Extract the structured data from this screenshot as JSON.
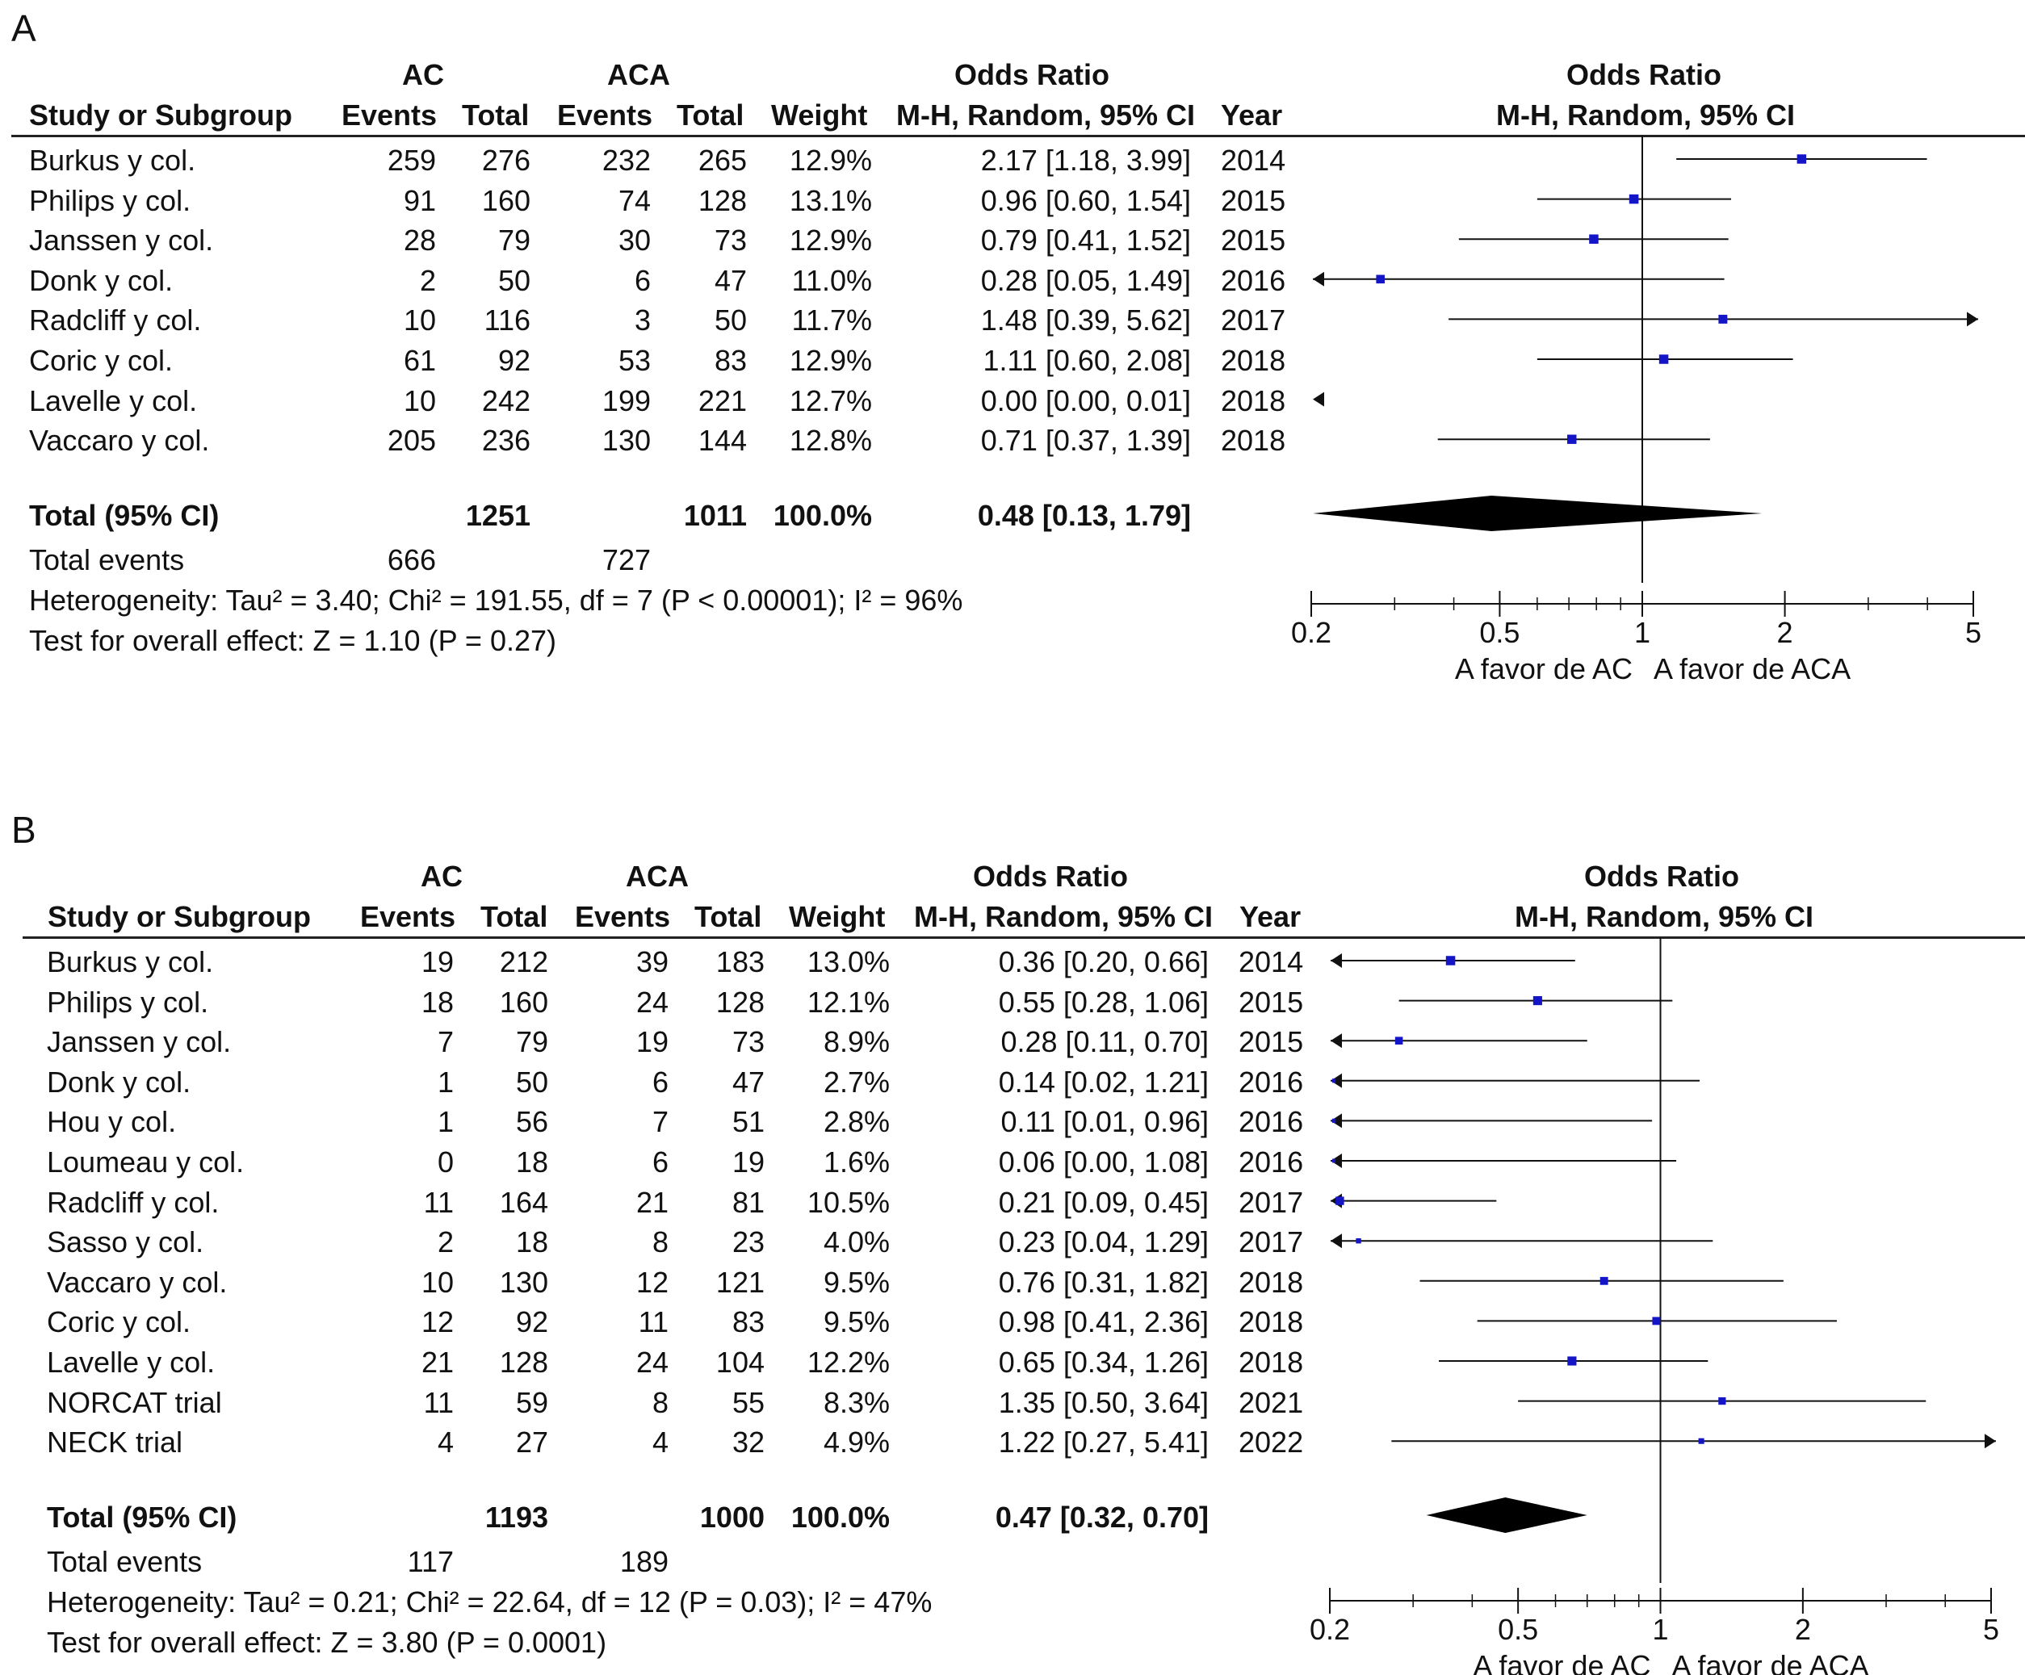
{
  "columns": {
    "group1": "AC",
    "group2": "ACA",
    "or_title": "Odds Ratio",
    "study": "Study or Subgroup",
    "events": "Events",
    "total": "Total",
    "weight": "Weight",
    "method": "M-H, Random, 95% CI",
    "year": "Year"
  },
  "chart_data": [
    {
      "type": "forest",
      "panel": "A",
      "xaxis": {
        "scale": "log",
        "ticks": [
          "0.2",
          "0.5",
          "1",
          "2",
          "5"
        ],
        "xlim": [
          0.2,
          5
        ],
        "favours_left": "A favor de AC",
        "favours_right": "A favor de ACA"
      },
      "title": "Odds Ratio",
      "subtitle": "M-H, Random, 95% CI",
      "studies": [
        {
          "name": "Burkus y col.",
          "e1": "259",
          "n1": "276",
          "e2": "232",
          "n2": "265",
          "weight": "12.9%",
          "or": 2.17,
          "lo": 1.18,
          "hi": 3.99,
          "ci_text": "2.17 [1.18, 3.99]",
          "year": "2014"
        },
        {
          "name": "Philips y col.",
          "e1": "91",
          "n1": "160",
          "e2": "74",
          "n2": "128",
          "weight": "13.1%",
          "or": 0.96,
          "lo": 0.6,
          "hi": 1.54,
          "ci_text": "0.96 [0.60, 1.54]",
          "year": "2015"
        },
        {
          "name": "Janssen y col.",
          "e1": "28",
          "n1": "79",
          "e2": "30",
          "n2": "73",
          "weight": "12.9%",
          "or": 0.79,
          "lo": 0.41,
          "hi": 1.52,
          "ci_text": "0.79 [0.41, 1.52]",
          "year": "2015"
        },
        {
          "name": "Donk y col.",
          "e1": "2",
          "n1": "50",
          "e2": "6",
          "n2": "47",
          "weight": "11.0%",
          "or": 0.28,
          "lo": 0.05,
          "hi": 1.49,
          "ci_text": "0.28 [0.05, 1.49]",
          "year": "2016"
        },
        {
          "name": "Radcliff y col.",
          "e1": "10",
          "n1": "116",
          "e2": "3",
          "n2": "50",
          "weight": "11.7%",
          "or": 1.48,
          "lo": 0.39,
          "hi": 5.62,
          "ci_text": "1.48 [0.39, 5.62]",
          "year": "2017"
        },
        {
          "name": "Coric y col.",
          "e1": "61",
          "n1": "92",
          "e2": "53",
          "n2": "83",
          "weight": "12.9%",
          "or": 1.11,
          "lo": 0.6,
          "hi": 2.08,
          "ci_text": "1.11 [0.60, 2.08]",
          "year": "2018"
        },
        {
          "name": "Lavelle y col.",
          "e1": "10",
          "n1": "242",
          "e2": "199",
          "n2": "221",
          "weight": "12.7%",
          "or": 0.0,
          "lo": 0.0,
          "hi": 0.01,
          "ci_text": "0.00 [0.00, 0.01]",
          "year": "2018"
        },
        {
          "name": "Vaccaro y col.",
          "e1": "205",
          "n1": "236",
          "e2": "130",
          "n2": "144",
          "weight": "12.8%",
          "or": 0.71,
          "lo": 0.37,
          "hi": 1.39,
          "ci_text": "0.71 [0.37, 1.39]",
          "year": "2018"
        }
      ],
      "total": {
        "label": "Total (95% CI)",
        "n1": "1251",
        "n2": "1011",
        "weight": "100.0%",
        "or": 0.48,
        "lo": 0.13,
        "hi": 1.79,
        "ci_text": "0.48 [0.13, 1.79]"
      },
      "total_events": {
        "label": "Total events",
        "e1": "666",
        "e2": "727"
      },
      "heterogeneity": "Heterogeneity: Tau² = 3.40; Chi² = 191.55, df = 7 (P < 0.00001); I² = 96%",
      "overall_effect": "Test for overall effect: Z = 1.10 (P = 0.27)"
    },
    {
      "type": "forest",
      "panel": "B",
      "xaxis": {
        "scale": "log",
        "ticks": [
          "0.2",
          "0.5",
          "1",
          "2",
          "5"
        ],
        "xlim": [
          0.2,
          5
        ],
        "favours_left": "A favor de AC",
        "favours_right": "A favor de ACA"
      },
      "title": "Odds Ratio",
      "subtitle": "M-H, Random, 95% CI",
      "studies": [
        {
          "name": "Burkus y col.",
          "e1": "19",
          "n1": "212",
          "e2": "39",
          "n2": "183",
          "weight": "13.0%",
          "or": 0.36,
          "lo": 0.2,
          "hi": 0.66,
          "ci_text": "0.36 [0.20, 0.66]",
          "year": "2014"
        },
        {
          "name": "Philips y col.",
          "e1": "18",
          "n1": "160",
          "e2": "24",
          "n2": "128",
          "weight": "12.1%",
          "or": 0.55,
          "lo": 0.28,
          "hi": 1.06,
          "ci_text": "0.55 [0.28, 1.06]",
          "year": "2015"
        },
        {
          "name": "Janssen y col.",
          "e1": "7",
          "n1": "79",
          "e2": "19",
          "n2": "73",
          "weight": "8.9%",
          "or": 0.28,
          "lo": 0.11,
          "hi": 0.7,
          "ci_text": "0.28 [0.11, 0.70]",
          "year": "2015"
        },
        {
          "name": "Donk y col.",
          "e1": "1",
          "n1": "50",
          "e2": "6",
          "n2": "47",
          "weight": "2.7%",
          "or": 0.14,
          "lo": 0.02,
          "hi": 1.21,
          "ci_text": "0.14 [0.02, 1.21]",
          "year": "2016"
        },
        {
          "name": "Hou y col.",
          "e1": "1",
          "n1": "56",
          "e2": "7",
          "n2": "51",
          "weight": "2.8%",
          "or": 0.11,
          "lo": 0.01,
          "hi": 0.96,
          "ci_text": "0.11 [0.01, 0.96]",
          "year": "2016"
        },
        {
          "name": "Loumeau y col.",
          "e1": "0",
          "n1": "18",
          "e2": "6",
          "n2": "19",
          "weight": "1.6%",
          "or": 0.06,
          "lo": 0.0,
          "hi": 1.08,
          "ci_text": "0.06 [0.00, 1.08]",
          "year": "2016"
        },
        {
          "name": "Radcliff y col.",
          "e1": "11",
          "n1": "164",
          "e2": "21",
          "n2": "81",
          "weight": "10.5%",
          "or": 0.21,
          "lo": 0.09,
          "hi": 0.45,
          "ci_text": "0.21 [0.09, 0.45]",
          "year": "2017"
        },
        {
          "name": "Sasso y col.",
          "e1": "2",
          "n1": "18",
          "e2": "8",
          "n2": "23",
          "weight": "4.0%",
          "or": 0.23,
          "lo": 0.04,
          "hi": 1.29,
          "ci_text": "0.23 [0.04, 1.29]",
          "year": "2017"
        },
        {
          "name": "Vaccaro y col.",
          "e1": "10",
          "n1": "130",
          "e2": "12",
          "n2": "121",
          "weight": "9.5%",
          "or": 0.76,
          "lo": 0.31,
          "hi": 1.82,
          "ci_text": "0.76 [0.31, 1.82]",
          "year": "2018"
        },
        {
          "name": "Coric y col.",
          "e1": "12",
          "n1": "92",
          "e2": "11",
          "n2": "83",
          "weight": "9.5%",
          "or": 0.98,
          "lo": 0.41,
          "hi": 2.36,
          "ci_text": "0.98 [0.41, 2.36]",
          "year": "2018"
        },
        {
          "name": "Lavelle y col.",
          "e1": "21",
          "n1": "128",
          "e2": "24",
          "n2": "104",
          "weight": "12.2%",
          "or": 0.65,
          "lo": 0.34,
          "hi": 1.26,
          "ci_text": "0.65 [0.34, 1.26]",
          "year": "2018"
        },
        {
          "name": "NORCAT trial",
          "e1": "11",
          "n1": "59",
          "e2": "8",
          "n2": "55",
          "weight": "8.3%",
          "or": 1.35,
          "lo": 0.5,
          "hi": 3.64,
          "ci_text": "1.35 [0.50, 3.64]",
          "year": "2021"
        },
        {
          "name": "NECK trial",
          "e1": "4",
          "n1": "27",
          "e2": "4",
          "n2": "32",
          "weight": "4.9%",
          "or": 1.22,
          "lo": 0.27,
          "hi": 5.41,
          "ci_text": "1.22 [0.27, 5.41]",
          "year": "2022"
        }
      ],
      "total": {
        "label": "Total (95% CI)",
        "n1": "1193",
        "n2": "1000",
        "weight": "100.0%",
        "or": 0.47,
        "lo": 0.32,
        "hi": 0.7,
        "ci_text": "0.47 [0.32, 0.70]"
      },
      "total_events": {
        "label": "Total events",
        "e1": "117",
        "e2": "189"
      },
      "heterogeneity": "Heterogeneity: Tau² = 0.21; Chi² = 22.64, df = 12 (P = 0.03); I² = 47%",
      "overall_effect": "Test for overall effect: Z = 3.80 (P = 0.0001)"
    }
  ],
  "colors": {
    "marker": "#1515c8",
    "line": "#111111",
    "diamond": "#000000"
  }
}
